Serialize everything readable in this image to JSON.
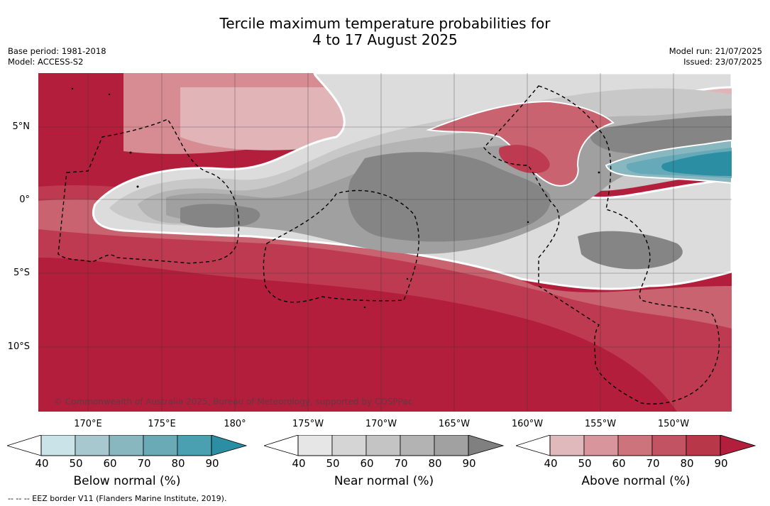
{
  "title": {
    "line1": "Tercile maximum temperature probabilities for",
    "line2": "4 to 17 August 2025"
  },
  "meta_left": {
    "base_period": "Base period: 1981-2018",
    "model": "Model: ACCESS-S2"
  },
  "meta_right": {
    "model_run": "Model run: 21/07/2025",
    "issued": "Issued: 23/07/2025"
  },
  "map": {
    "lat_labels": [
      "5°N",
      "0°",
      "5°S",
      "10°S"
    ],
    "lon_labels": [
      "170°E",
      "175°E",
      "180°",
      "175°W",
      "170°W",
      "165°W",
      "160°W",
      "155°W",
      "150°W"
    ],
    "credit": "© Commonwealth of Australia 2025, Bureau of Meteorology, supported by COSPPac",
    "colors": {
      "above_90": "#b21e3b",
      "above_80": "#bd3a50",
      "above_70": "#c9636f",
      "above_60": "#d68c92",
      "above_50": "#e1b4b8",
      "near_50": "#dcdcdc",
      "near_60": "#c8c8c8",
      "near_70": "#b4b4b4",
      "near_80": "#a0a0a0",
      "near_90": "#858585",
      "below_70": "#66a9b8",
      "below_80": "#3f98ab",
      "below_90": "#2b8ea3"
    }
  },
  "colorbars": [
    {
      "title": "Below normal (%)",
      "ticks": [
        "40",
        "50",
        "60",
        "70",
        "80",
        "90"
      ],
      "colors": [
        "#c9e3e9",
        "#a6c8ce",
        "#88b7c0",
        "#6aa9b6",
        "#4aa0b0",
        "#2b8ea3"
      ]
    },
    {
      "title": "Near normal (%)",
      "ticks": [
        "40",
        "50",
        "60",
        "70",
        "80",
        "90"
      ],
      "colors": [
        "#e6e6e6",
        "#d5d5d5",
        "#c4c4c4",
        "#b3b3b3",
        "#a1a1a1",
        "#808080"
      ]
    },
    {
      "title": "Above normal (%)",
      "ticks": [
        "40",
        "50",
        "60",
        "70",
        "80",
        "90"
      ],
      "colors": [
        "#e0b9bd",
        "#d8959c",
        "#cc737c",
        "#c25362",
        "#b8384a",
        "#b21e3b"
      ]
    }
  ],
  "footnote": "--  --  -- EEZ border V11 (Flanders Marine Institute, 2019)."
}
